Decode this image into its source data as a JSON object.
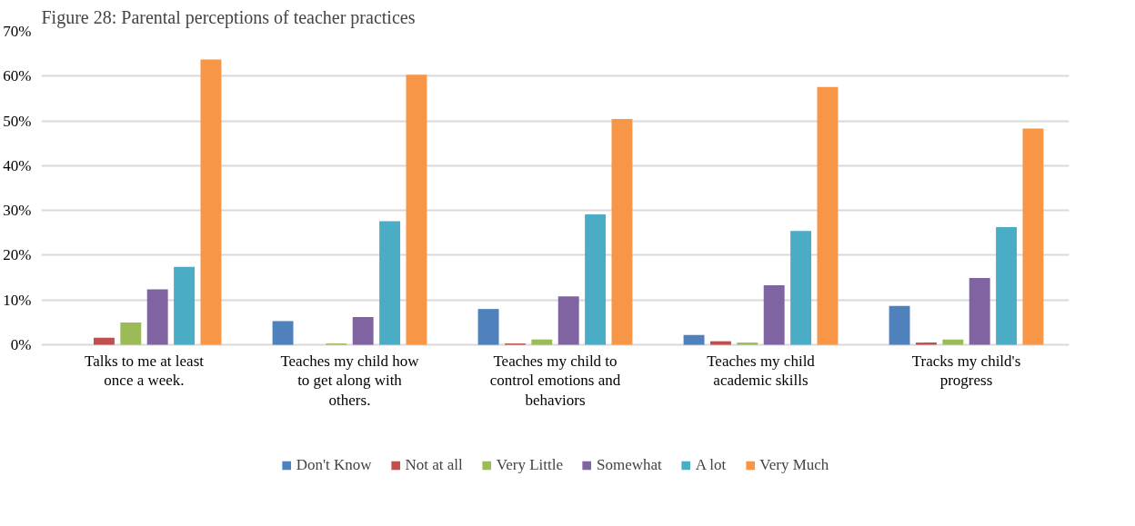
{
  "chart_data": {
    "type": "bar",
    "title": "Figure 28: Parental perceptions of teacher practices",
    "categories": [
      "Talks to me at least once a week.",
      "Teaches my child how to get along with others.",
      "Teaches my child to control emotions and behaviors",
      "Teaches my child academic skills",
      "Tracks my child's progress"
    ],
    "series": [
      {
        "name": "Don't Know",
        "color": "#4f81bd",
        "values": [
          0,
          5.3,
          8.0,
          2.2,
          8.7
        ]
      },
      {
        "name": "Not at all",
        "color": "#c0504d",
        "values": [
          1.6,
          0,
          0.3,
          0.8,
          0.5
        ]
      },
      {
        "name": "Very Little",
        "color": "#9bbb59",
        "values": [
          5.0,
          0.3,
          1.2,
          0.5,
          1.2
        ]
      },
      {
        "name": "Somewhat",
        "color": "#8064a2",
        "values": [
          12.4,
          6.2,
          10.8,
          13.3,
          14.9
        ]
      },
      {
        "name": "A lot",
        "color": "#4bacc6",
        "values": [
          17.4,
          27.6,
          29.1,
          25.4,
          26.3
        ]
      },
      {
        "name": "Very Much",
        "color": "#f79646",
        "values": [
          63.7,
          60.3,
          50.4,
          57.6,
          48.3
        ]
      }
    ],
    "ylim": [
      0,
      70
    ],
    "yticks": [
      {
        "value": 0,
        "label": "0%"
      },
      {
        "value": 10,
        "label": "10%"
      },
      {
        "value": 20,
        "label": "20%"
      },
      {
        "value": 30,
        "label": "30%"
      },
      {
        "value": 40,
        "label": "40%"
      },
      {
        "value": 50,
        "label": "50%"
      },
      {
        "value": 60,
        "label": "60%"
      },
      {
        "value": 70,
        "label": "70%"
      }
    ],
    "grid": "y",
    "legend": "bottom"
  }
}
